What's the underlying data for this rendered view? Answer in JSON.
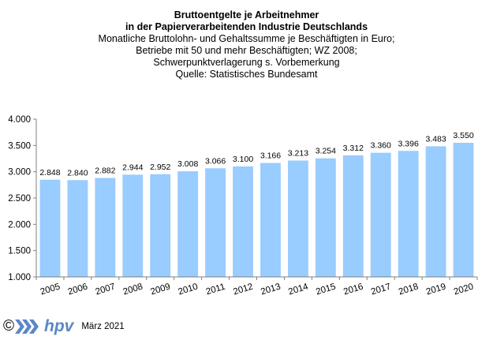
{
  "titles": {
    "line1": "Bruttoentgelte  je Arbeitnehmer",
    "line2": "in der Papierverarbeitenden Industrie Deutschlands",
    "line3": "Monatliche Bruttolohn- und Gehaltssumme je Beschäftigten  in Euro;",
    "line4": "Betriebe  mit 50 und mehr Beschäftigten; WZ 2008;",
    "line5": "Schwerpunktverlagerung   s. Vorbemerkung",
    "line6": "Quelle:  Statistisches Bundesamt"
  },
  "footer": {
    "copyright": "©",
    "logo_text": "hpv",
    "date": "März 2021"
  },
  "colors": {
    "bar": "#99ccff",
    "axis": "#808080",
    "logo": "#5b87c6"
  },
  "chart_data": {
    "type": "bar",
    "categories": [
      "2005",
      "2006",
      "2007",
      "2008",
      "2009",
      "2010",
      "2011",
      "2012",
      "2013",
      "2014",
      "2015",
      "2016",
      "2017",
      "2018",
      "2019",
      "2020"
    ],
    "values": [
      2848,
      2840,
      2882,
      2944,
      2952,
      3008,
      3066,
      3100,
      3166,
      3213,
      3254,
      3312,
      3360,
      3396,
      3483,
      3550
    ],
    "data_labels": [
      "2.848",
      "2.840",
      "2.882",
      "2.944",
      "2.952",
      "3.008",
      "3.066",
      "3.100",
      "3.166",
      "3.213",
      "3.254",
      "3.312",
      "3.360",
      "3.396",
      "3.483",
      "3.550"
    ],
    "ylim": [
      1000,
      4000
    ],
    "yticks": [
      1000,
      1500,
      2000,
      2500,
      3000,
      3500,
      4000
    ],
    "ytick_labels": [
      "1.000",
      "1.500",
      "2.000",
      "2.500",
      "3.000",
      "3.500",
      "4.000"
    ],
    "grid": false,
    "legend": "none"
  }
}
